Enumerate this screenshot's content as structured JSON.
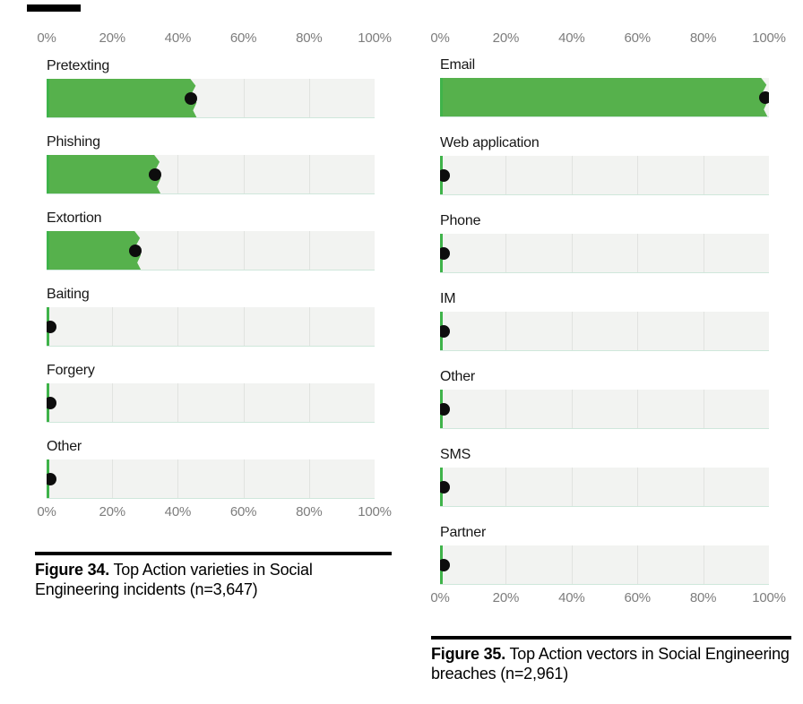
{
  "charts": [
    {
      "id": "figure-34",
      "axis_ticks": [
        "0%",
        "20%",
        "40%",
        "60%",
        "80%",
        "100%"
      ],
      "rows": [
        {
          "label": "Pretexting",
          "dot": 44,
          "bar": 46
        },
        {
          "label": "Phishing",
          "dot": 33,
          "bar": 35
        },
        {
          "label": "Extortion",
          "dot": 27,
          "bar": 29
        },
        {
          "label": "Baiting",
          "dot": 1,
          "bar": 0.8
        },
        {
          "label": "Forgery",
          "dot": 1,
          "bar": 0.8
        },
        {
          "label": "Other",
          "dot": 1,
          "bar": 0.8
        }
      ],
      "caption_bold": "Figure 34.",
      "caption_rest": " Top Action varieties in Social Engineering incidents (n=3,647)"
    },
    {
      "id": "figure-35",
      "axis_ticks": [
        "0%",
        "20%",
        "40%",
        "60%",
        "80%",
        "100%"
      ],
      "rows": [
        {
          "label": "Email",
          "dot": 99,
          "bar": 99.8
        },
        {
          "label": "Web application",
          "dot": 1,
          "bar": 0.8
        },
        {
          "label": "Phone",
          "dot": 1,
          "bar": 0.8
        },
        {
          "label": "IM",
          "dot": 1,
          "bar": 0.8
        },
        {
          "label": "Other",
          "dot": 1,
          "bar": 0.8
        },
        {
          "label": "SMS",
          "dot": 1,
          "bar": 0.8
        },
        {
          "label": "Partner",
          "dot": 1,
          "bar": 0.8
        }
      ],
      "caption_bold": "Figure 35.",
      "caption_rest": " Top Action vectors in Social Engineering breaches (n=2,961)"
    }
  ],
  "chart_data": [
    {
      "type": "bar",
      "orientation": "horizontal",
      "title": "Figure 34. Top Action varieties in Social Engineering incidents (n=3,647)",
      "categories": [
        "Pretexting",
        "Phishing",
        "Extortion",
        "Baiting",
        "Forgery",
        "Other"
      ],
      "values": [
        44,
        33,
        27,
        1,
        1,
        1
      ],
      "unit": "%",
      "xlabel": "",
      "ylabel": "",
      "xlim": [
        0,
        100
      ],
      "xticks": [
        "0%",
        "20%",
        "40%",
        "60%",
        "80%",
        "100%"
      ],
      "grid": true,
      "legend": false,
      "notes": "Green bar with wavy end shows estimate range; black dot marks point estimate.",
      "colors": {
        "bar": "#56b14c",
        "dot": "#0d0d0d",
        "track": "#f2f3f1"
      }
    },
    {
      "type": "bar",
      "orientation": "horizontal",
      "title": "Figure 35. Top Action vectors in Social Engineering breaches (n=2,961)",
      "categories": [
        "Email",
        "Web application",
        "Phone",
        "IM",
        "Other",
        "SMS",
        "Partner"
      ],
      "values": [
        99,
        1,
        1,
        1,
        1,
        1,
        1
      ],
      "unit": "%",
      "xlabel": "",
      "ylabel": "",
      "xlim": [
        0,
        100
      ],
      "xticks": [
        "0%",
        "20%",
        "40%",
        "60%",
        "80%",
        "100%"
      ],
      "grid": true,
      "legend": false,
      "notes": "Green bar with wavy end shows estimate range; black dot marks point estimate.",
      "colors": {
        "bar": "#56b14c",
        "dot": "#0d0d0d",
        "track": "#f2f3f1"
      }
    }
  ]
}
